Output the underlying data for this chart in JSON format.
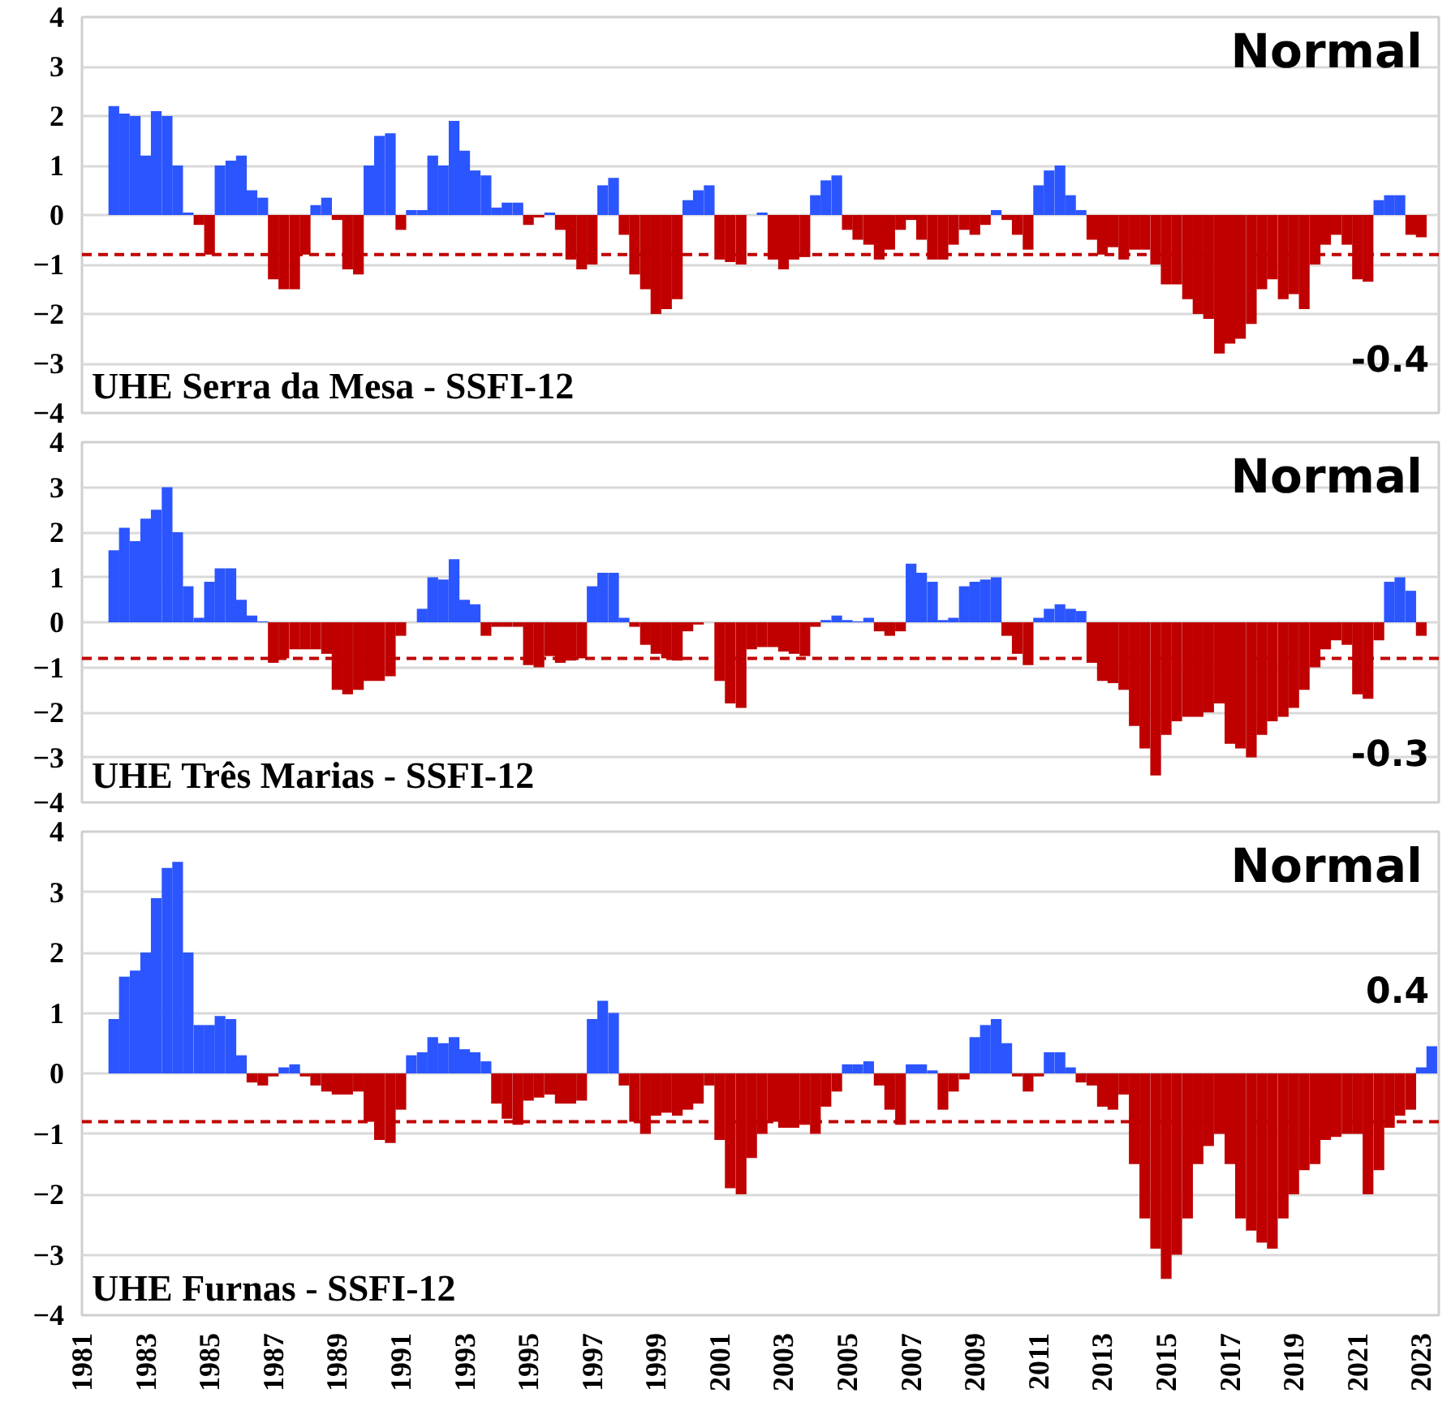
{
  "chart_data": [
    {
      "type": "bar",
      "title": "UHE Serra da Mesa - SSFI-12",
      "annotations": [
        "Normal",
        "-0.4"
      ],
      "x": [
        1982,
        1982.33,
        1982.67,
        1983,
        1983.33,
        1983.67,
        1984,
        1984.33,
        1984.67,
        1985,
        1985.33,
        1985.67,
        1986,
        1986.33,
        1986.67,
        1987,
        1987.33,
        1987.67,
        1988,
        1988.33,
        1988.67,
        1989,
        1989.33,
        1989.67,
        1990,
        1990.33,
        1990.67,
        1991,
        1991.33,
        1991.67,
        1992,
        1992.33,
        1992.67,
        1993,
        1993.33,
        1993.67,
        1994,
        1994.33,
        1994.67,
        1995,
        1995.33,
        1995.67,
        1996,
        1996.33,
        1996.67,
        1997,
        1997.33,
        1997.67,
        1998,
        1998.33,
        1998.67,
        1999,
        1999.33,
        1999.67,
        2000,
        2000.33,
        2000.67,
        2001,
        2001.33,
        2001.67,
        2002,
        2002.33,
        2002.67,
        2003,
        2003.33,
        2003.67,
        2004,
        2004.33,
        2004.67,
        2005,
        2005.33,
        2005.67,
        2006,
        2006.33,
        2006.67,
        2007,
        2007.33,
        2007.67,
        2008,
        2008.33,
        2008.67,
        2009,
        2009.33,
        2009.67,
        2010,
        2010.33,
        2010.67,
        2011,
        2011.33,
        2011.67,
        2012,
        2012.33,
        2012.67,
        2013,
        2013.33,
        2013.67,
        2014,
        2014.33,
        2014.67,
        2015,
        2015.33,
        2015.67,
        2016,
        2016.33,
        2016.67,
        2017,
        2017.33,
        2017.67,
        2018,
        2018.33,
        2018.67,
        2019,
        2019.33,
        2019.67,
        2020,
        2020.33,
        2020.67,
        2021,
        2021.33,
        2021.67,
        2022,
        2022.33,
        2022.67,
        2023
      ],
      "values": [
        2.2,
        2.05,
        2.0,
        1.2,
        2.1,
        2.0,
        1.0,
        0.05,
        -0.2,
        -0.8,
        1.0,
        1.1,
        1.2,
        0.5,
        0.35,
        -1.3,
        -1.5,
        -1.5,
        -0.8,
        0.2,
        0.35,
        -0.1,
        -1.1,
        -1.2,
        1.0,
        1.6,
        1.65,
        -0.3,
        0.1,
        0.1,
        1.2,
        1.0,
        1.9,
        1.3,
        0.9,
        0.8,
        0.15,
        0.25,
        0.25,
        -0.2,
        -0.05,
        0.05,
        -0.3,
        -0.9,
        -1.1,
        -1.0,
        0.6,
        0.75,
        -0.4,
        -1.2,
        -1.5,
        -2.0,
        -1.9,
        -1.7,
        0.3,
        0.5,
        0.6,
        -0.9,
        -0.95,
        -1.0,
        0,
        0.05,
        -0.9,
        -1.1,
        -0.9,
        -0.85,
        0.4,
        0.7,
        0.8,
        -0.3,
        -0.5,
        -0.6,
        -0.9,
        -0.7,
        -0.3,
        -0.1,
        -0.5,
        -0.9,
        -0.9,
        -0.6,
        -0.3,
        -0.4,
        -0.2,
        0.1,
        -0.1,
        -0.4,
        -0.7,
        0.6,
        0.9,
        1.0,
        0.4,
        0.1,
        -0.5,
        -0.8,
        -0.65,
        -0.9,
        -0.7,
        -0.7,
        -1.0,
        -1.4,
        -1.4,
        -1.7,
        -2.0,
        -2.1,
        -2.8,
        -2.6,
        -2.5,
        -2.2,
        -1.5,
        -1.3,
        -1.7,
        -1.6,
        -1.9,
        -1.0,
        -0.6,
        -0.4,
        -0.6,
        -1.3,
        -1.35,
        0.3,
        0.4,
        0.4,
        -0.4,
        -0.45
      ],
      "colors": [
        "#2b55ff",
        "#2b55ff",
        "#2b55ff",
        "#2b55ff",
        "#2b55ff",
        "#2b55ff",
        "#2b55ff",
        "#2b55ff",
        "#c00000",
        "#c00000",
        "#2b55ff",
        "#2b55ff",
        "#2b55ff",
        "#2b55ff",
        "#2b55ff",
        "#c00000",
        "#c00000",
        "#c00000",
        "#c00000",
        "#2b55ff",
        "#2b55ff",
        "#c00000",
        "#c00000",
        "#c00000",
        "#2b55ff",
        "#2b55ff",
        "#2b55ff",
        "#c00000",
        "#2b55ff",
        "#2b55ff",
        "#2b55ff",
        "#2b55ff",
        "#2b55ff",
        "#2b55ff",
        "#2b55ff",
        "#2b55ff",
        "#2b55ff",
        "#2b55ff",
        "#2b55ff",
        "#c00000",
        "#c00000",
        "#2b55ff",
        "#c00000",
        "#c00000",
        "#c00000",
        "#c00000",
        "#2b55ff",
        "#2b55ff",
        "#c00000",
        "#c00000",
        "#c00000",
        "#c00000",
        "#c00000",
        "#c00000",
        "#2b55ff",
        "#2b55ff",
        "#2b55ff",
        "#c00000",
        "#c00000",
        "#c00000",
        "#2b55ff",
        "#2b55ff",
        "#c00000",
        "#c00000",
        "#c00000",
        "#c00000",
        "#2b55ff",
        "#2b55ff",
        "#2b55ff",
        "#c00000",
        "#c00000",
        "#c00000",
        "#c00000",
        "#c00000",
        "#c00000",
        "#c00000",
        "#c00000",
        "#c00000",
        "#c00000",
        "#c00000",
        "#c00000",
        "#c00000",
        "#c00000",
        "#2b55ff",
        "#c00000",
        "#c00000",
        "#c00000",
        "#2b55ff",
        "#2b55ff",
        "#2b55ff",
        "#2b55ff",
        "#2b55ff",
        "#c00000",
        "#c00000",
        "#c00000",
        "#c00000",
        "#c00000",
        "#c00000",
        "#c00000",
        "#c00000",
        "#c00000",
        "#c00000",
        "#c00000",
        "#c00000",
        "#c00000",
        "#c00000",
        "#c00000",
        "#c00000",
        "#c00000",
        "#c00000",
        "#c00000",
        "#c00000",
        "#c00000",
        "#c00000",
        "#c00000",
        "#c00000",
        "#c00000",
        "#c00000",
        "#c00000",
        "#2b55ff",
        "#2b55ff",
        "#2b55ff",
        "#c00000",
        "#c00000"
      ],
      "xlim": [
        1981,
        2023.55
      ],
      "ylim": [
        -4,
        4
      ],
      "yticks": [
        -4,
        -3,
        -2,
        -1,
        0,
        1,
        2,
        3,
        4
      ],
      "xticks": [
        1981,
        1983,
        1985,
        1987,
        1989,
        1991,
        1993,
        1995,
        1997,
        1999,
        2001,
        2003,
        2005,
        2007,
        2009,
        2011,
        2013,
        2015,
        2017,
        2019,
        2021,
        2023
      ],
      "tick_labels": "y",
      "grid": "y",
      "ref_lines": [
        {
          "axis": "y",
          "value": -0.8,
          "color": "#c00000",
          "line_style": "dashed"
        }
      ]
    },
    {
      "type": "bar",
      "title": "UHE Três Marias - SSFI-12",
      "annotations": [
        "Normal",
        "-0.3"
      ],
      "x": [
        1982,
        1982.33,
        1982.67,
        1983,
        1983.33,
        1983.67,
        1984,
        1984.33,
        1984.67,
        1985,
        1985.33,
        1985.67,
        1986,
        1986.33,
        1986.67,
        1987,
        1987.33,
        1987.67,
        1988,
        1988.33,
        1988.67,
        1989,
        1989.33,
        1989.67,
        1990,
        1990.33,
        1990.67,
        1991,
        1991.33,
        1991.67,
        1992,
        1992.33,
        1992.67,
        1993,
        1993.33,
        1993.67,
        1994,
        1994.33,
        1994.67,
        1995,
        1995.33,
        1995.67,
        1996,
        1996.33,
        1996.67,
        1997,
        1997.33,
        1997.67,
        1998,
        1998.33,
        1998.67,
        1999,
        1999.33,
        1999.67,
        2000,
        2000.33,
        2000.67,
        2001,
        2001.33,
        2001.67,
        2002,
        2002.33,
        2002.67,
        2003,
        2003.33,
        2003.67,
        2004,
        2004.33,
        2004.67,
        2005,
        2005.33,
        2005.67,
        2006,
        2006.33,
        2006.67,
        2007,
        2007.33,
        2007.67,
        2008,
        2008.33,
        2008.67,
        2009,
        2009.33,
        2009.67,
        2010,
        2010.33,
        2010.67,
        2011,
        2011.33,
        2011.67,
        2012,
        2012.33,
        2012.67,
        2013,
        2013.33,
        2013.67,
        2014,
        2014.33,
        2014.67,
        2015,
        2015.33,
        2015.67,
        2016,
        2016.33,
        2016.67,
        2017,
        2017.33,
        2017.67,
        2018,
        2018.33,
        2018.67,
        2019,
        2019.33,
        2019.67,
        2020,
        2020.33,
        2020.67,
        2021,
        2021.33,
        2021.67,
        2022,
        2022.33,
        2022.67,
        2023
      ],
      "values": [
        1.6,
        2.1,
        1.8,
        2.3,
        2.5,
        3.0,
        2.0,
        0.8,
        0.1,
        0.9,
        1.2,
        1.2,
        0.5,
        0.15,
        0.02,
        -0.9,
        -0.8,
        -0.6,
        -0.6,
        -0.6,
        -0.7,
        -1.5,
        -1.6,
        -1.5,
        -1.3,
        -1.3,
        -1.2,
        -0.3,
        0.0,
        0.3,
        1.0,
        0.95,
        1.4,
        0.5,
        0.4,
        -0.3,
        -0.1,
        -0.1,
        -0.1,
        -0.95,
        -1.0,
        -0.75,
        -0.9,
        -0.85,
        -0.8,
        0.8,
        1.1,
        1.1,
        0.1,
        -0.1,
        -0.5,
        -0.7,
        -0.8,
        -0.85,
        -0.2,
        -0.05,
        0.0,
        -1.3,
        -1.8,
        -1.9,
        -0.6,
        -0.55,
        -0.55,
        -0.65,
        -0.7,
        -0.75,
        -0.1,
        0.05,
        0.15,
        0.05,
        0.02,
        0.1,
        -0.2,
        -0.3,
        -0.2,
        1.3,
        1.1,
        0.9,
        0.05,
        0.1,
        0.8,
        0.9,
        0.95,
        1.0,
        -0.3,
        -0.7,
        -0.95,
        0.1,
        0.3,
        0.4,
        0.3,
        0.25,
        -0.9,
        -1.3,
        -1.35,
        -1.5,
        -2.3,
        -2.8,
        -3.4,
        -2.5,
        -2.2,
        -2.1,
        -2.1,
        -2.0,
        -1.8,
        -2.7,
        -2.8,
        -3.0,
        -2.5,
        -2.2,
        -2.1,
        -1.9,
        -1.5,
        -1.0,
        -0.6,
        -0.4,
        -0.5,
        -1.6,
        -1.7,
        -0.4,
        0.9,
        1.0,
        0.7,
        -0.3
      ],
      "colors": [
        "#2b55ff",
        "#2b55ff",
        "#2b55ff",
        "#2b55ff",
        "#2b55ff",
        "#2b55ff",
        "#2b55ff",
        "#2b55ff",
        "#2b55ff",
        "#2b55ff",
        "#2b55ff",
        "#2b55ff",
        "#2b55ff",
        "#2b55ff",
        "#2b55ff",
        "#c00000",
        "#c00000",
        "#c00000",
        "#c00000",
        "#c00000",
        "#c00000",
        "#c00000",
        "#c00000",
        "#c00000",
        "#c00000",
        "#c00000",
        "#c00000",
        "#c00000",
        "#2b55ff",
        "#2b55ff",
        "#2b55ff",
        "#2b55ff",
        "#2b55ff",
        "#2b55ff",
        "#2b55ff",
        "#c00000",
        "#c00000",
        "#c00000",
        "#c00000",
        "#c00000",
        "#c00000",
        "#c00000",
        "#c00000",
        "#c00000",
        "#c00000",
        "#2b55ff",
        "#2b55ff",
        "#2b55ff",
        "#2b55ff",
        "#c00000",
        "#c00000",
        "#c00000",
        "#c00000",
        "#c00000",
        "#c00000",
        "#c00000",
        "#2b55ff",
        "#c00000",
        "#c00000",
        "#c00000",
        "#c00000",
        "#c00000",
        "#c00000",
        "#c00000",
        "#c00000",
        "#c00000",
        "#c00000",
        "#2b55ff",
        "#2b55ff",
        "#2b55ff",
        "#2b55ff",
        "#2b55ff",
        "#c00000",
        "#c00000",
        "#c00000",
        "#2b55ff",
        "#2b55ff",
        "#2b55ff",
        "#2b55ff",
        "#2b55ff",
        "#2b55ff",
        "#2b55ff",
        "#2b55ff",
        "#2b55ff",
        "#c00000",
        "#c00000",
        "#c00000",
        "#2b55ff",
        "#2b55ff",
        "#2b55ff",
        "#2b55ff",
        "#2b55ff",
        "#c00000",
        "#c00000",
        "#c00000",
        "#c00000",
        "#c00000",
        "#c00000",
        "#c00000",
        "#c00000",
        "#c00000",
        "#c00000",
        "#c00000",
        "#c00000",
        "#c00000",
        "#c00000",
        "#c00000",
        "#c00000",
        "#c00000",
        "#c00000",
        "#c00000",
        "#c00000",
        "#c00000",
        "#c00000",
        "#c00000",
        "#c00000",
        "#c00000",
        "#c00000",
        "#c00000",
        "#c00000",
        "#2b55ff",
        "#2b55ff",
        "#2b55ff",
        "#c00000"
      ],
      "xlim": [
        1981,
        2023.55
      ],
      "ylim": [
        -4,
        4
      ],
      "yticks": [
        -4,
        -3,
        -2,
        -1,
        0,
        1,
        2,
        3,
        4
      ],
      "xticks": [
        1981,
        1983,
        1985,
        1987,
        1989,
        1991,
        1993,
        1995,
        1997,
        1999,
        2001,
        2003,
        2005,
        2007,
        2009,
        2011,
        2013,
        2015,
        2017,
        2019,
        2021,
        2023
      ],
      "tick_labels": "y",
      "grid": "y",
      "ref_lines": [
        {
          "axis": "y",
          "value": -0.8,
          "color": "#c00000",
          "line_style": "dashed"
        }
      ]
    },
    {
      "type": "bar",
      "title": "UHE Furnas - SSFI-12",
      "annotations": [
        "Normal",
        "0.4"
      ],
      "x": [
        1982,
        1982.33,
        1982.67,
        1983,
        1983.33,
        1983.67,
        1984,
        1984.33,
        1984.67,
        1985,
        1985.33,
        1985.67,
        1986,
        1986.33,
        1986.67,
        1987,
        1987.33,
        1987.67,
        1988,
        1988.33,
        1988.67,
        1989,
        1989.33,
        1989.67,
        1990,
        1990.33,
        1990.67,
        1991,
        1991.33,
        1991.67,
        1992,
        1992.33,
        1992.67,
        1993,
        1993.33,
        1993.67,
        1994,
        1994.33,
        1994.67,
        1995,
        1995.33,
        1995.67,
        1996,
        1996.33,
        1996.67,
        1997,
        1997.33,
        1997.67,
        1998,
        1998.33,
        1998.67,
        1999,
        1999.33,
        1999.67,
        2000,
        2000.33,
        2000.67,
        2001,
        2001.33,
        2001.67,
        2002,
        2002.33,
        2002.67,
        2003,
        2003.33,
        2003.67,
        2004,
        2004.33,
        2004.67,
        2005,
        2005.33,
        2005.67,
        2006,
        2006.33,
        2006.67,
        2007,
        2007.33,
        2007.67,
        2008,
        2008.33,
        2008.67,
        2009,
        2009.33,
        2009.67,
        2010,
        2010.33,
        2010.67,
        2011,
        2011.33,
        2011.67,
        2012,
        2012.33,
        2012.67,
        2013,
        2013.33,
        2013.67,
        2014,
        2014.33,
        2014.67,
        2015,
        2015.33,
        2015.67,
        2016,
        2016.33,
        2016.67,
        2017,
        2017.33,
        2017.67,
        2018,
        2018.33,
        2018.67,
        2019,
        2019.33,
        2019.67,
        2020,
        2020.33,
        2020.67,
        2021,
        2021.33,
        2021.67,
        2022,
        2022.33,
        2022.67,
        2023,
        2023.33
      ],
      "values": [
        0.9,
        1.6,
        1.7,
        2.0,
        2.9,
        3.4,
        3.5,
        2.0,
        0.8,
        0.8,
        0.95,
        0.9,
        0.3,
        -0.15,
        -0.2,
        -0.05,
        0.1,
        0.15,
        -0.05,
        -0.2,
        -0.3,
        -0.35,
        -0.35,
        -0.3,
        -0.8,
        -1.1,
        -1.15,
        -0.6,
        0.3,
        0.35,
        0.6,
        0.5,
        0.6,
        0.4,
        0.35,
        0.2,
        -0.5,
        -0.75,
        -0.85,
        -0.45,
        -0.4,
        -0.35,
        -0.5,
        -0.5,
        -0.45,
        0.9,
        1.2,
        1.0,
        -0.2,
        -0.8,
        -1.0,
        -0.7,
        -0.65,
        -0.7,
        -0.6,
        -0.5,
        -0.2,
        -1.1,
        -1.9,
        -2.0,
        -1.4,
        -1.0,
        -0.8,
        -0.9,
        -0.9,
        -0.85,
        -1.0,
        -0.55,
        -0.3,
        0.15,
        0.15,
        0.2,
        -0.2,
        -0.6,
        -0.85,
        0.15,
        0.15,
        0.05,
        -0.6,
        -0.3,
        -0.1,
        0.6,
        0.8,
        0.9,
        0.5,
        -0.05,
        -0.3,
        -0.05,
        0.35,
        0.35,
        0.1,
        -0.15,
        -0.2,
        -0.55,
        -0.6,
        -0.35,
        -1.5,
        -2.4,
        -2.9,
        -3.4,
        -3.0,
        -2.4,
        -1.5,
        -1.2,
        -1.0,
        -1.5,
        -2.4,
        -2.6,
        -2.8,
        -2.9,
        -2.4,
        -2.0,
        -1.6,
        -1.5,
        -1.1,
        -1.05,
        -1.0,
        -1.0,
        -2.0,
        -1.6,
        -0.9,
        -0.7,
        -0.6,
        0.1,
        0.45
      ],
      "colors": [
        "#2b55ff",
        "#2b55ff",
        "#2b55ff",
        "#2b55ff",
        "#2b55ff",
        "#2b55ff",
        "#2b55ff",
        "#2b55ff",
        "#2b55ff",
        "#2b55ff",
        "#2b55ff",
        "#2b55ff",
        "#2b55ff",
        "#c00000",
        "#c00000",
        "#c00000",
        "#2b55ff",
        "#2b55ff",
        "#c00000",
        "#c00000",
        "#c00000",
        "#c00000",
        "#c00000",
        "#c00000",
        "#c00000",
        "#c00000",
        "#c00000",
        "#c00000",
        "#2b55ff",
        "#2b55ff",
        "#2b55ff",
        "#2b55ff",
        "#2b55ff",
        "#2b55ff",
        "#2b55ff",
        "#2b55ff",
        "#c00000",
        "#c00000",
        "#c00000",
        "#c00000",
        "#c00000",
        "#c00000",
        "#c00000",
        "#c00000",
        "#c00000",
        "#2b55ff",
        "#2b55ff",
        "#2b55ff",
        "#c00000",
        "#c00000",
        "#c00000",
        "#c00000",
        "#c00000",
        "#c00000",
        "#c00000",
        "#c00000",
        "#c00000",
        "#c00000",
        "#c00000",
        "#c00000",
        "#c00000",
        "#c00000",
        "#c00000",
        "#c00000",
        "#c00000",
        "#c00000",
        "#c00000",
        "#c00000",
        "#c00000",
        "#2b55ff",
        "#2b55ff",
        "#2b55ff",
        "#c00000",
        "#c00000",
        "#c00000",
        "#2b55ff",
        "#2b55ff",
        "#2b55ff",
        "#c00000",
        "#c00000",
        "#c00000",
        "#2b55ff",
        "#2b55ff",
        "#2b55ff",
        "#2b55ff",
        "#c00000",
        "#c00000",
        "#c00000",
        "#2b55ff",
        "#2b55ff",
        "#2b55ff",
        "#c00000",
        "#c00000",
        "#c00000",
        "#c00000",
        "#c00000",
        "#c00000",
        "#c00000",
        "#c00000",
        "#c00000",
        "#c00000",
        "#c00000",
        "#c00000",
        "#c00000",
        "#c00000",
        "#c00000",
        "#c00000",
        "#c00000",
        "#c00000",
        "#c00000",
        "#c00000",
        "#c00000",
        "#c00000",
        "#c00000",
        "#c00000",
        "#c00000",
        "#c00000",
        "#c00000",
        "#c00000",
        "#c00000",
        "#c00000",
        "#c00000",
        "#c00000",
        "#2b55ff",
        "#2b55ff"
      ],
      "xlim": [
        1981,
        2023.55
      ],
      "ylim": [
        -4,
        4
      ],
      "yticks": [
        -4,
        -3,
        -2,
        -1,
        0,
        1,
        2,
        3,
        4
      ],
      "xticks": [
        1981,
        1983,
        1985,
        1987,
        1989,
        1991,
        1993,
        1995,
        1997,
        1999,
        2001,
        2003,
        2005,
        2007,
        2009,
        2011,
        2013,
        2015,
        2017,
        2019,
        2021,
        2023
      ],
      "grid": "y",
      "ref_lines": [
        {
          "axis": "y",
          "value": -0.8,
          "color": "#c00000",
          "line_style": "dashed"
        }
      ]
    }
  ]
}
